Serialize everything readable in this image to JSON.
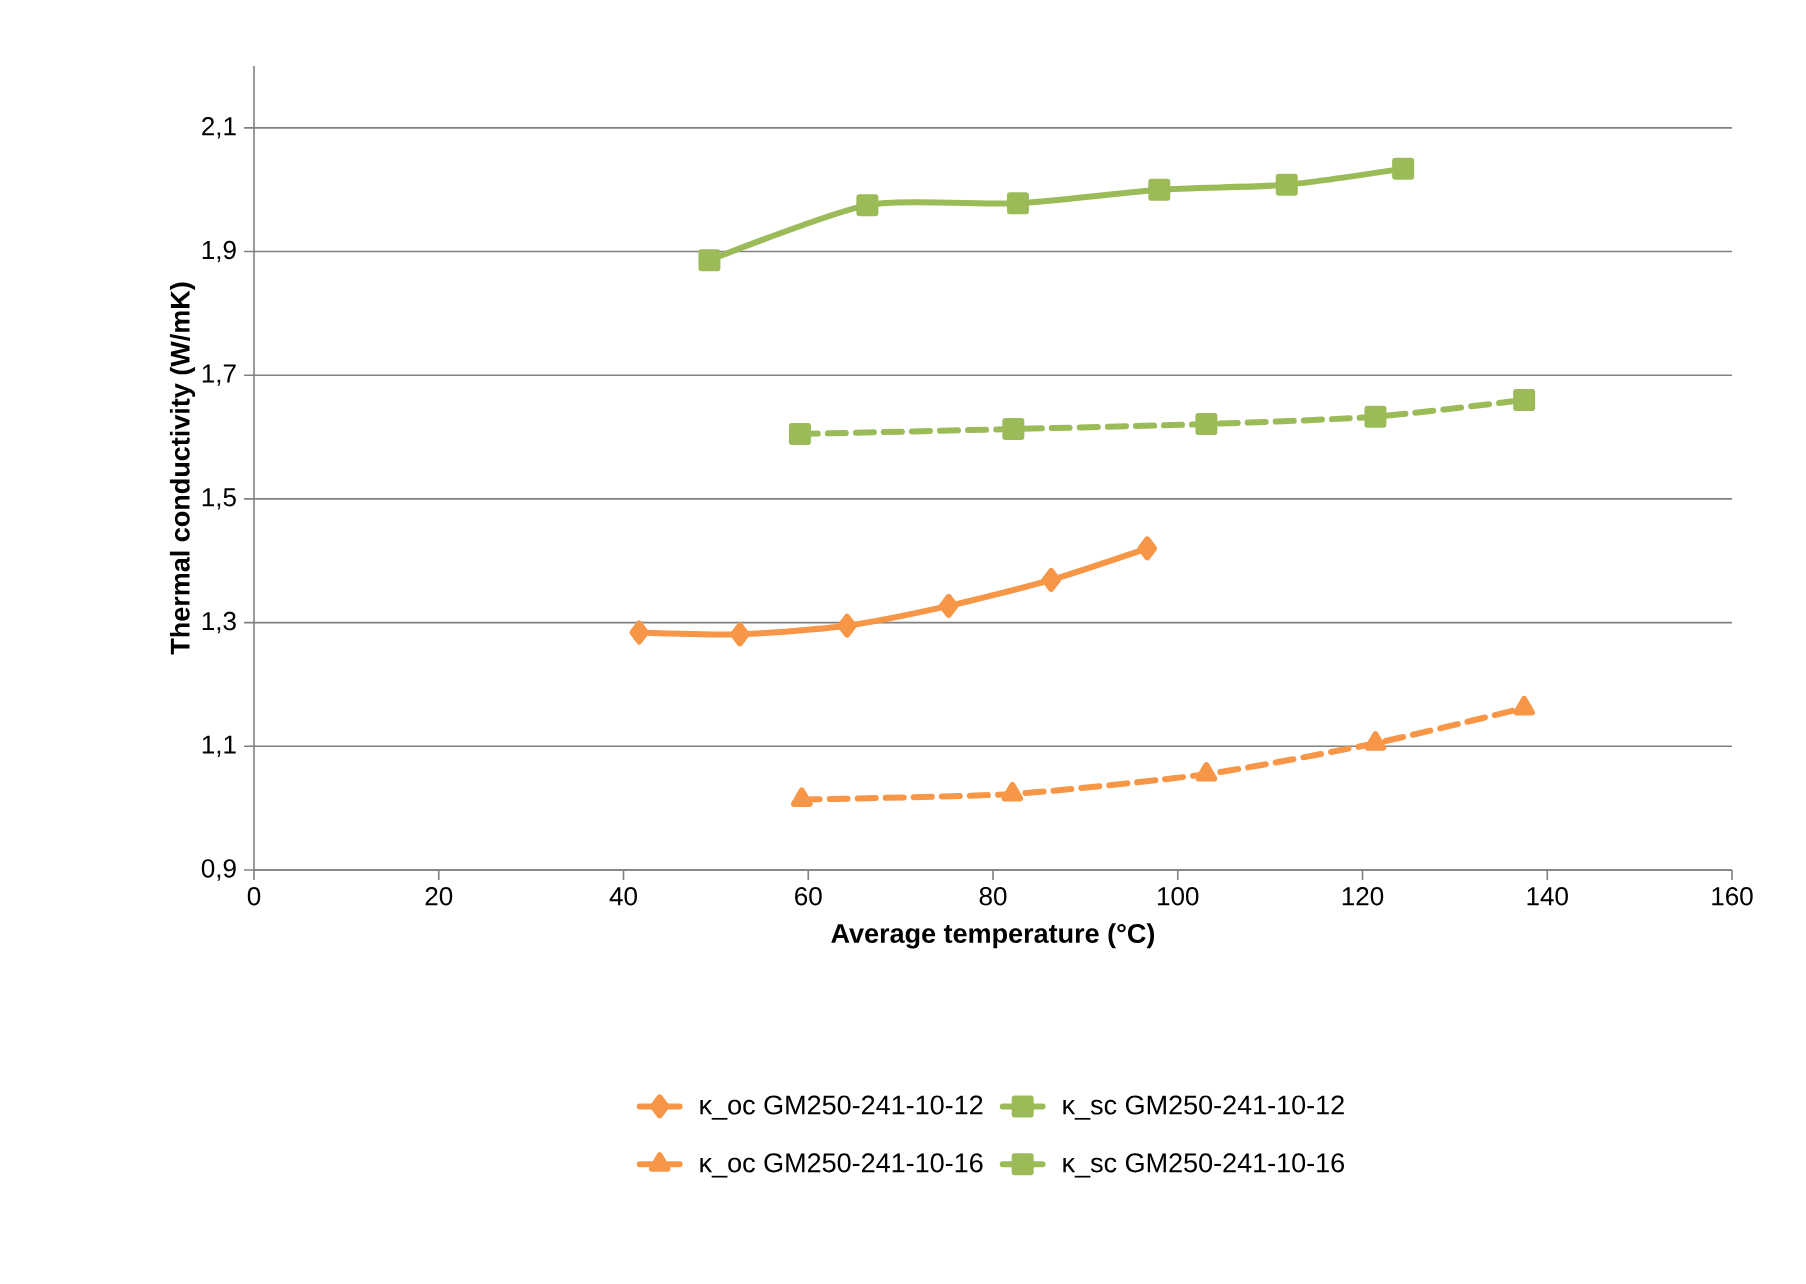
{
  "chart_data": {
    "type": "line",
    "xlabel": "Average temperature (°C)",
    "ylabel": "Thermal conductivity (W/mK)",
    "xlim": [
      0,
      160
    ],
    "ylim": [
      0.9,
      2.2
    ],
    "xticks": [
      0,
      20,
      40,
      60,
      80,
      100,
      120,
      140,
      160
    ],
    "yticks": [
      {
        "value": 0.9,
        "label": "0,9"
      },
      {
        "value": 1.1,
        "label": "1,1"
      },
      {
        "value": 1.3,
        "label": "1,3"
      },
      {
        "value": 1.5,
        "label": "1,5"
      },
      {
        "value": 1.7,
        "label": "1,7"
      },
      {
        "value": 1.9,
        "label": "1,9"
      },
      {
        "value": 2.1,
        "label": "2,1"
      }
    ],
    "grid": "y",
    "legend": "bottom",
    "series": [
      {
        "name": "κ_oc GM250-241-10-12",
        "color": "#f79646",
        "marker": "diamond",
        "line_style": "solid",
        "x": [
          41.7,
          52.6,
          64.2,
          75.2,
          86.3,
          96.7
        ],
        "values": [
          1.284,
          1.281,
          1.295,
          1.327,
          1.369,
          1.42
        ]
      },
      {
        "name": "κ_sc GM250-241-10-12",
        "color": "#9bbb59",
        "marker": "square",
        "line_style": "solid",
        "x": [
          49.3,
          66.4,
          82.7,
          98.0,
          111.8,
          124.4
        ],
        "values": [
          1.886,
          1.975,
          1.978,
          2.0,
          2.008,
          2.034
        ]
      },
      {
        "name": "κ_oc GM250-241-10-16",
        "color": "#f79646",
        "marker": "triangle",
        "line_style": "dashed",
        "x": [
          59.3,
          82.1,
          103.1,
          121.4,
          137.5
        ],
        "values": [
          1.014,
          1.023,
          1.055,
          1.105,
          1.162
        ]
      },
      {
        "name": "κ_sc GM250-241-10-16",
        "color": "#9bbb59",
        "marker": "square",
        "line_style": "dashed",
        "x": [
          59.1,
          82.2,
          103.1,
          121.4,
          137.5
        ],
        "values": [
          1.605,
          1.613,
          1.621,
          1.633,
          1.66
        ]
      }
    ]
  }
}
